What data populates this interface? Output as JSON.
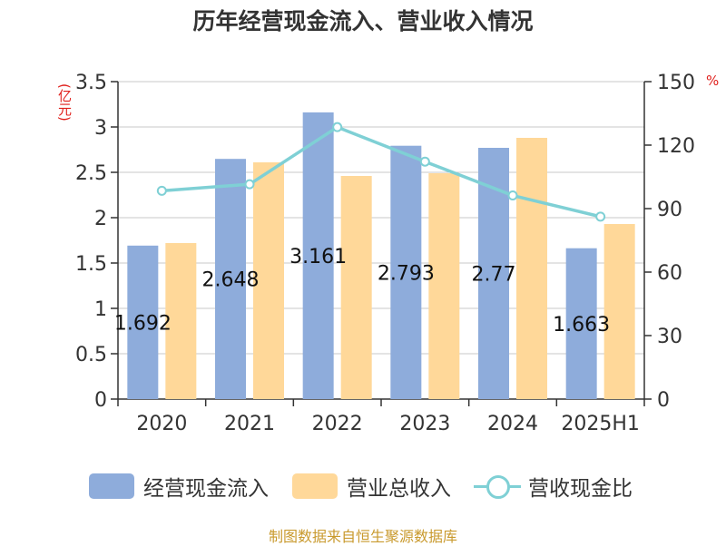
{
  "colors": {
    "bar_cash": "#8eacdb",
    "bar_revenue": "#ffd899",
    "line": "#7fd0d5",
    "unit": "#e0211d",
    "footer": "#c99a2e"
  },
  "chart_data": {
    "type": "bar",
    "title": "历年经营现金流入、营业收入情况",
    "categories": [
      "2020",
      "2021",
      "2022",
      "2023",
      "2024",
      "2025H1"
    ],
    "series": [
      {
        "name": "经营现金流入",
        "type": "bar",
        "axis": "left",
        "values": [
          1.692,
          2.648,
          3.161,
          2.793,
          2.77,
          1.663
        ]
      },
      {
        "name": "营业总收入",
        "type": "bar",
        "axis": "left",
        "values": [
          1.72,
          2.61,
          2.46,
          2.49,
          2.88,
          1.93
        ]
      },
      {
        "name": "营收现金比",
        "type": "line",
        "axis": "right",
        "values": [
          98.4,
          101.5,
          128.5,
          112.2,
          96.2,
          86.2
        ]
      }
    ],
    "data_labels": [
      "1.692",
      "2.648",
      "3.161",
      "2.793",
      "2.77",
      "1.663"
    ],
    "y_left": {
      "label": "(亿元)",
      "ylim": [
        0,
        3.5
      ],
      "ticks": [
        "0",
        "0.5",
        "1",
        "1.5",
        "2",
        "2.5",
        "3",
        "3.5"
      ]
    },
    "y_right": {
      "label": "%",
      "ylim": [
        0,
        150
      ],
      "ticks": [
        "0",
        "30",
        "60",
        "90",
        "120",
        "150"
      ]
    },
    "grid": true,
    "legend_position": "bottom"
  },
  "footer": "制图数据来自恒生聚源数据库"
}
